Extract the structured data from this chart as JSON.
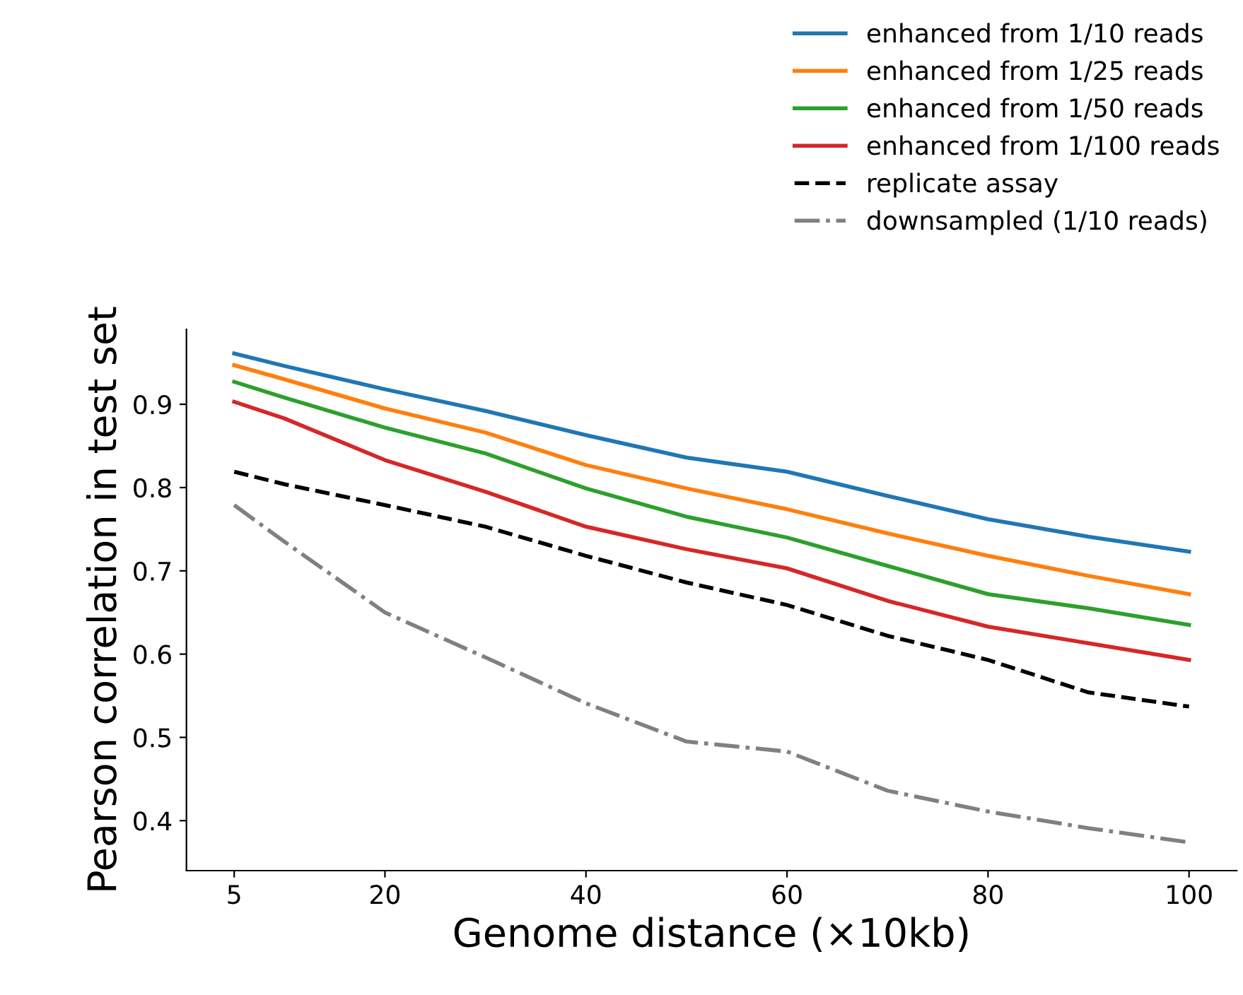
{
  "chart_data": {
    "type": "line",
    "xlabel": "Genome distance (×10kb)",
    "ylabel": "Pearson correlation in test set",
    "x": [
      5,
      10,
      20,
      30,
      40,
      50,
      60,
      70,
      80,
      90,
      100
    ],
    "series": [
      {
        "name": "enhanced from 1/10 reads",
        "color": "#1f77b4",
        "line_style": "solid",
        "values": [
          0.961,
          0.946,
          0.918,
          0.892,
          0.863,
          0.836,
          0.819,
          0.79,
          0.762,
          0.741,
          0.723
        ]
      },
      {
        "name": "enhanced from 1/25 reads",
        "color": "#ff7f0e",
        "line_style": "solid",
        "values": [
          0.947,
          0.93,
          0.895,
          0.866,
          0.827,
          0.799,
          0.774,
          0.745,
          0.718,
          0.694,
          0.672
        ]
      },
      {
        "name": "enhanced from 1/50 reads",
        "color": "#2ca02c",
        "line_style": "solid",
        "values": [
          0.927,
          0.908,
          0.872,
          0.841,
          0.799,
          0.765,
          0.74,
          0.706,
          0.672,
          0.655,
          0.635
        ]
      },
      {
        "name": "enhanced from 1/100 reads",
        "color": "#d62728",
        "line_style": "solid",
        "values": [
          0.903,
          0.883,
          0.833,
          0.795,
          0.753,
          0.726,
          0.703,
          0.664,
          0.633,
          0.613,
          0.593
        ]
      },
      {
        "name": "replicate assay",
        "color": "#000000",
        "line_style": "dashed",
        "values": [
          0.819,
          0.804,
          0.779,
          0.753,
          0.718,
          0.686,
          0.659,
          0.622,
          0.593,
          0.554,
          0.537
        ]
      },
      {
        "name": "downsampled (1/10 reads)",
        "color": "#808080",
        "line_style": "dashdot",
        "values": [
          0.779,
          0.735,
          0.65,
          0.596,
          0.541,
          0.495,
          0.483,
          0.436,
          0.411,
          0.391,
          0.374
        ]
      }
    ],
    "xlim": [
      0.25,
      104.75
    ],
    "ylim": [
      0.34,
      0.99
    ],
    "xticks": [
      5,
      20,
      40,
      60,
      80,
      100
    ],
    "yticks": [
      0.4,
      0.5,
      0.6,
      0.7,
      0.8,
      0.9
    ],
    "grid": false,
    "legend": "top right",
    "marker": "none"
  }
}
